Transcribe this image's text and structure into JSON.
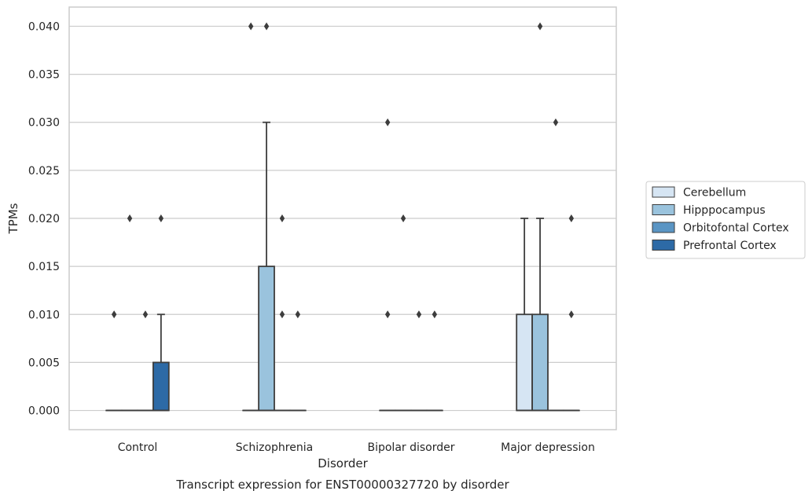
{
  "caption": "Transcript expression for ENST00000327720 by disorder",
  "chart_data": {
    "type": "box",
    "xlabel": "Disorder",
    "ylabel": "TPMs",
    "ylim": [
      -0.002,
      0.042
    ],
    "yticks": [
      "0.000",
      "0.005",
      "0.010",
      "0.015",
      "0.020",
      "0.025",
      "0.030",
      "0.035",
      "0.040"
    ],
    "categories": [
      "Control",
      "Schizophrenia",
      "Bipolar disorder",
      "Major depression"
    ],
    "grid": "horizontal",
    "legend_position": "right",
    "series": [
      {
        "name": "Cerebellum",
        "color": "#d6e5f3",
        "boxes": [
          {
            "q1": 0,
            "median": 0,
            "q3": 0,
            "whisker_low": 0,
            "whisker_high": 0,
            "outliers": [
              0.01
            ]
          },
          {
            "q1": 0,
            "median": 0,
            "q3": 0,
            "whisker_low": 0,
            "whisker_high": 0,
            "outliers": [
              0.04
            ]
          },
          {
            "q1": 0,
            "median": 0,
            "q3": 0,
            "whisker_low": 0,
            "whisker_high": 0,
            "outliers": [
              0.03,
              0.01
            ]
          },
          {
            "q1": 0,
            "median": 0,
            "q3": 0.01,
            "whisker_low": 0,
            "whisker_high": 0.02,
            "outliers": []
          }
        ]
      },
      {
        "name": "Hipppocampus",
        "color": "#9ac3dd",
        "boxes": [
          {
            "q1": 0,
            "median": 0,
            "q3": 0,
            "whisker_low": 0,
            "whisker_high": 0,
            "outliers": [
              0.02
            ]
          },
          {
            "q1": 0,
            "median": 0,
            "q3": 0.015,
            "whisker_low": 0,
            "whisker_high": 0.03,
            "outliers": [
              0.04
            ]
          },
          {
            "q1": 0,
            "median": 0,
            "q3": 0,
            "whisker_low": 0,
            "whisker_high": 0,
            "outliers": [
              0.02
            ]
          },
          {
            "q1": 0,
            "median": 0,
            "q3": 0.01,
            "whisker_low": 0,
            "whisker_high": 0.02,
            "outliers": [
              0.04
            ]
          }
        ]
      },
      {
        "name": "Orbitofontal Cortex",
        "color": "#5a95c4",
        "boxes": [
          {
            "q1": 0,
            "median": 0,
            "q3": 0,
            "whisker_low": 0,
            "whisker_high": 0,
            "outliers": [
              0.01
            ]
          },
          {
            "q1": 0,
            "median": 0,
            "q3": 0,
            "whisker_low": 0,
            "whisker_high": 0,
            "outliers": [
              0.02,
              0.01
            ]
          },
          {
            "q1": 0,
            "median": 0,
            "q3": 0,
            "whisker_low": 0,
            "whisker_high": 0,
            "outliers": [
              0.01
            ]
          },
          {
            "q1": 0,
            "median": 0,
            "q3": 0,
            "whisker_low": 0,
            "whisker_high": 0,
            "outliers": [
              0.03
            ]
          }
        ]
      },
      {
        "name": "Prefrontal Cortex",
        "color": "#2d6aa6",
        "boxes": [
          {
            "q1": 0,
            "median": 0,
            "q3": 0.005,
            "whisker_low": 0,
            "whisker_high": 0.01,
            "outliers": [
              0.02
            ]
          },
          {
            "q1": 0,
            "median": 0,
            "q3": 0,
            "whisker_low": 0,
            "whisker_high": 0,
            "outliers": [
              0.01
            ]
          },
          {
            "q1": 0,
            "median": 0,
            "q3": 0,
            "whisker_low": 0,
            "whisker_high": 0,
            "outliers": [
              0.01
            ]
          },
          {
            "q1": 0,
            "median": 0,
            "q3": 0,
            "whisker_low": 0,
            "whisker_high": 0,
            "outliers": [
              0.01,
              0.02
            ]
          }
        ]
      }
    ]
  }
}
